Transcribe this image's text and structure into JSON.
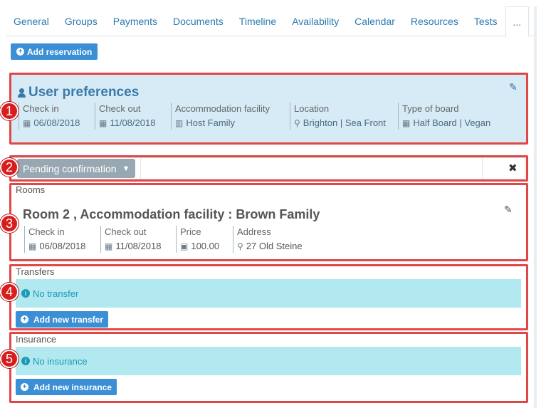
{
  "tabs": [
    "General",
    "Groups",
    "Payments",
    "Documents",
    "Timeline",
    "Availability",
    "Calendar",
    "Resources",
    "Tests",
    "..."
  ],
  "add_reservation_label": "Add reservation",
  "markers": [
    "1",
    "2",
    "3",
    "4",
    "5"
  ],
  "user_preferences": {
    "title": "User preferences",
    "fields": [
      {
        "label": "Check in",
        "value": "06/08/2018",
        "icon": "calendar-icon"
      },
      {
        "label": "Check out",
        "value": "11/08/2018",
        "icon": "calendar-icon"
      },
      {
        "label": "Accommodation facility",
        "value": "Host Family",
        "icon": "building-icon"
      },
      {
        "label": "Location",
        "value": "Brighton | Sea Front",
        "icon": "map-marker-icon"
      },
      {
        "label": "Type of board",
        "value": "Half Board | Vegan",
        "icon": "calendar-icon"
      }
    ]
  },
  "status": {
    "label": "Pending confirmation",
    "close_glyph": "✖"
  },
  "rooms": {
    "heading": "Rooms",
    "title": "Room 2 , Accommodation facility : Brown Family",
    "fields": [
      {
        "label": "Check in",
        "value": "06/08/2018",
        "icon": "calendar-icon"
      },
      {
        "label": "Check out",
        "value": "11/08/2018",
        "icon": "calendar-icon"
      },
      {
        "label": "Price",
        "value": "100.00",
        "icon": "money-icon"
      },
      {
        "label": "Address",
        "value": "27 Old Steine",
        "icon": "map-marker-icon"
      }
    ]
  },
  "transfers": {
    "heading": "Transfers",
    "empty_text": "No transfer",
    "add_label": "Add new transfer"
  },
  "insurance": {
    "heading": "Insurance",
    "empty_text": "No insurance",
    "add_label": "Add new insurance"
  },
  "colors": {
    "accent": "#3a8fd6",
    "prefs_bg": "#d6ebf6",
    "annotation_red": "#e04848",
    "info_bg": "#b2e8f0"
  }
}
